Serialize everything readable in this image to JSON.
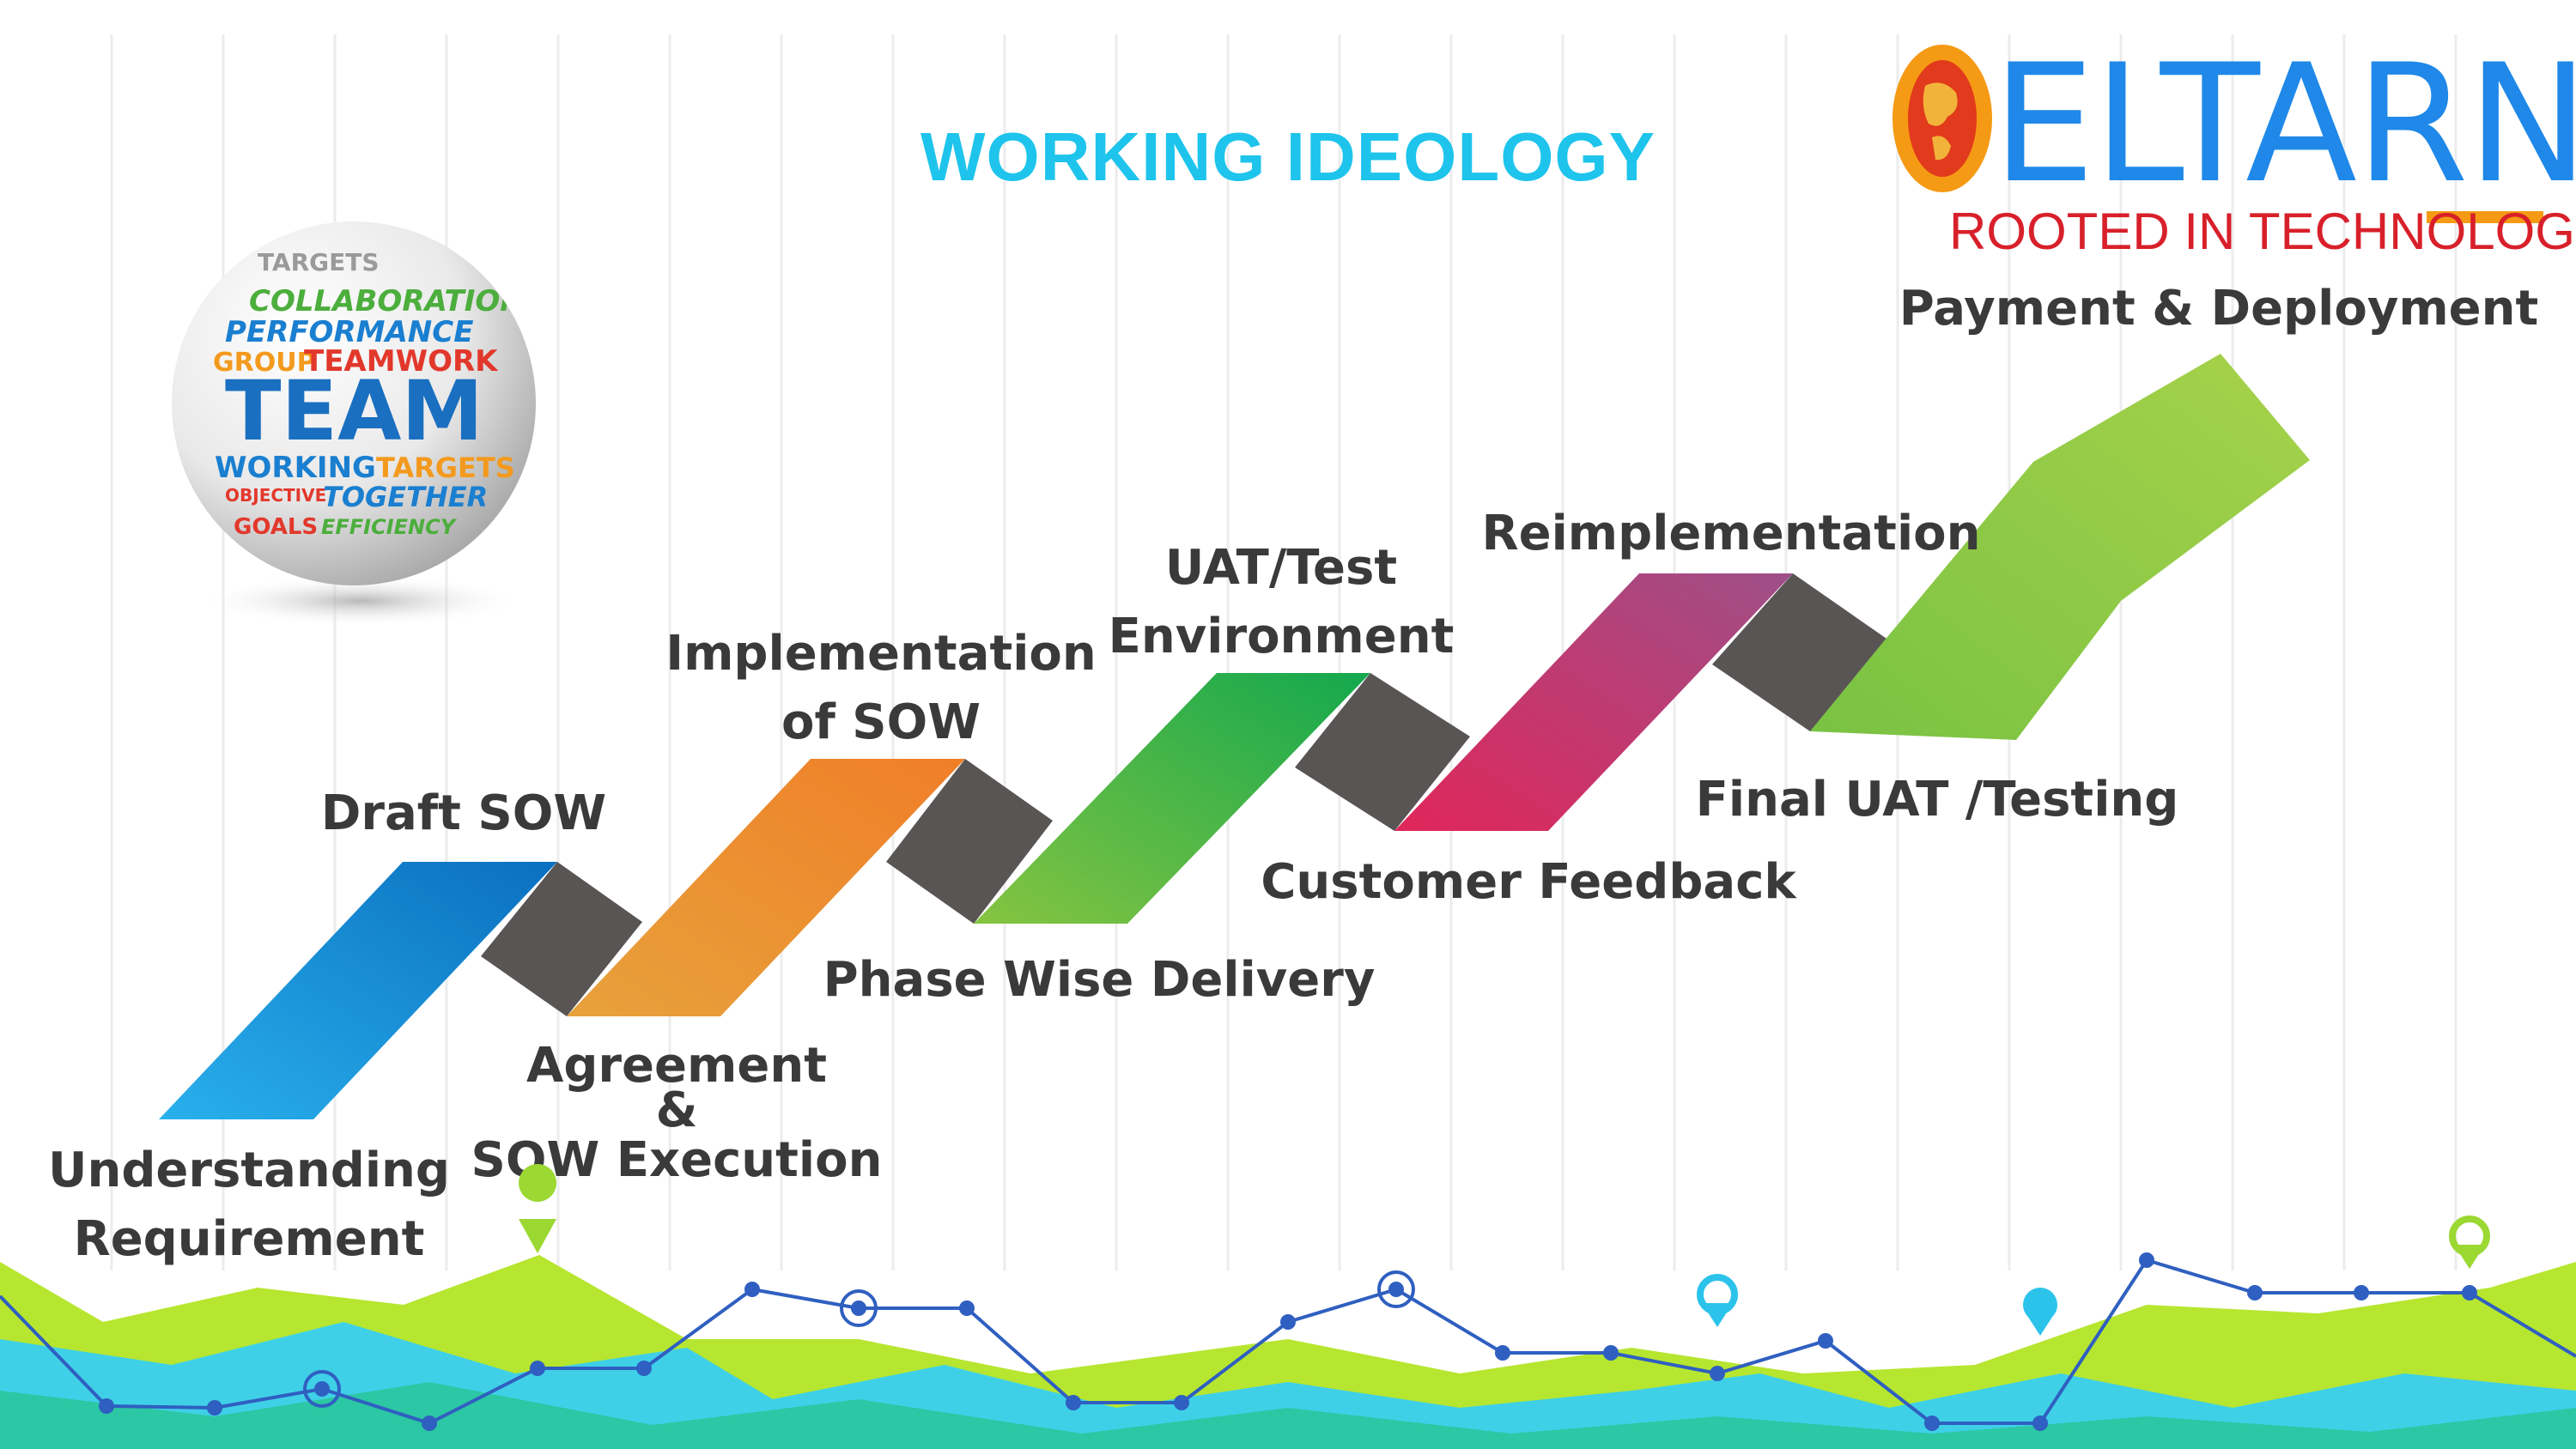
{
  "title": "WORKING IDEOLOGY",
  "logo": {
    "brand": "ELTARNET",
    "tagline": "ROOTED IN TECHNOLOGY"
  },
  "sphere": {
    "words": [
      "TARGETS",
      "COLLABORATION",
      "PERFORMANCE",
      "GROUP",
      "TEAMWORK",
      "TEAM",
      "WORKING",
      "TARGETS",
      "OBJECTIVE",
      "TOGETHER",
      "GOALS",
      "EFFICIENCY"
    ]
  },
  "steps": [
    {
      "line1": "Understanding",
      "line2": "Requirement"
    },
    {
      "line1": "Draft SOW"
    },
    {
      "line1": "Agreement",
      "line2": "&",
      "line3": "SOW Execution"
    },
    {
      "line1": "Implementation",
      "line2": "of SOW"
    },
    {
      "line1": "Phase Wise Delivery"
    },
    {
      "line1": "UAT/Test",
      "line2": "Environment"
    },
    {
      "line1": "Customer Feedback"
    },
    {
      "line1": "Reimplementation"
    },
    {
      "line1": "Final UAT /Testing"
    },
    {
      "line1": "Payment & Deployment"
    }
  ],
  "colors": {
    "title": "#1ec4ec",
    "segment_blue": "#1a8fd8",
    "segment_orange": "#f0922e",
    "segment_green": "#2db44a",
    "segment_magenta": "#c2356e",
    "arrow_green": "#8cc63f",
    "connector": "#5a5555",
    "logo_blue": "#1f88e8",
    "logo_orange": "#f59a14",
    "logo_red": "#d8202a"
  }
}
